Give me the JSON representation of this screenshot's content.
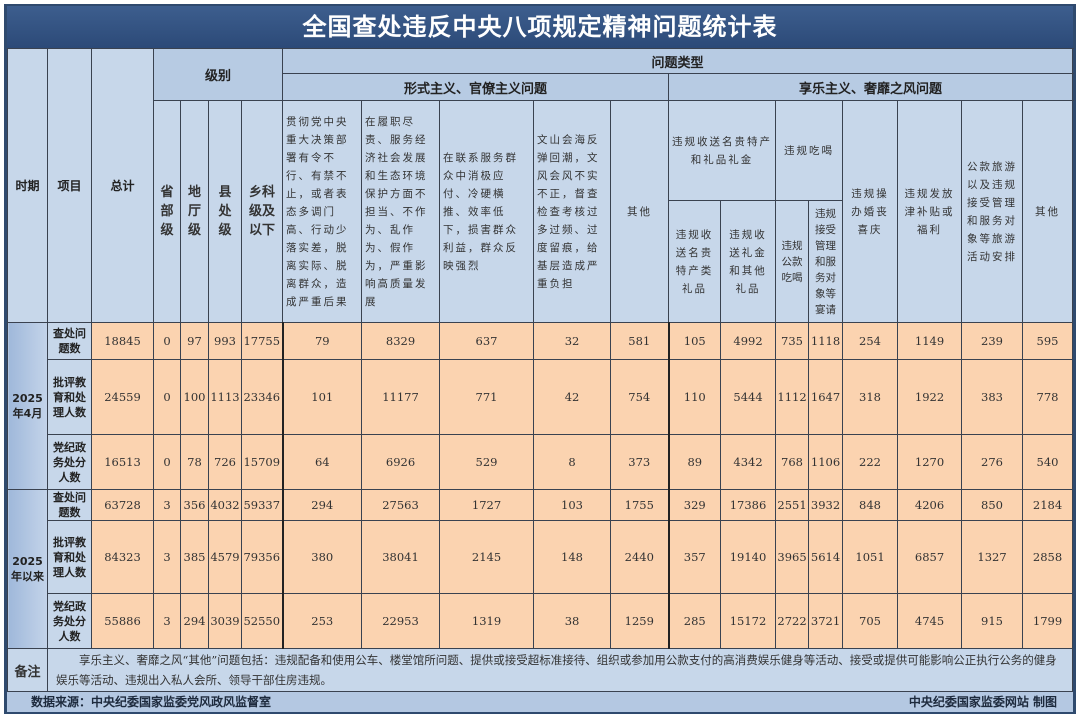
{
  "title": "全国查处违反中央八项规定精神问题统计表",
  "headers": {
    "period": "时期",
    "item": "项目",
    "total": "总计",
    "level": "级别",
    "levels": [
      "省部级",
      "地厅级",
      "县处级",
      "乡科级及以下"
    ],
    "problem_type": "问题类型",
    "formalism": "形式主义、官僚主义问题",
    "formalism_cols": [
      "贯彻党中央重大决策部署有令不行、有禁不止，或者表态多调门高、行动少落实差，脱离实际、脱离群众，造成严重后果",
      "在履职尽责、服务经济社会发展和生态环境保护方面不担当、不作为、乱作为、假作为，严重影响高质量发展",
      "在联系服务群众中消极应付、冷硬横推、效率低下，损害群众利益，群众反映强烈",
      "文山会海反弹回潮，文风会风不实不正，督查检查考核过多过频、过度留痕，给基层造成严重负担",
      "其他"
    ],
    "hedonism": "享乐主义、奢靡之风问题",
    "gift_group": "违规收送名贵特产和礼品礼金",
    "gift_cols": [
      "违规收送名贵特产类礼品",
      "违规收送礼金和其他礼品"
    ],
    "eat_group": "违规吃喝",
    "eat_cols": [
      "违规公款吃喝",
      "违规接受管理和服务对象等宴请"
    ],
    "other_hedonism_cols": [
      "违规操办婚丧喜庆",
      "违规发放津补贴或福利",
      "公款旅游以及违规接受管理和服务对象等旅游活动安排",
      "其他"
    ]
  },
  "periods": [
    {
      "label": "2025年4月",
      "rows": [
        {
          "item": "查处问题数",
          "values": [
            18845,
            0,
            97,
            993,
            17755,
            79,
            8329,
            637,
            32,
            581,
            105,
            4992,
            735,
            1118,
            254,
            1149,
            239,
            595
          ]
        },
        {
          "item": "批评教育和处理人数",
          "values": [
            24559,
            0,
            100,
            1113,
            23346,
            101,
            11177,
            771,
            42,
            754,
            110,
            5444,
            1112,
            1647,
            318,
            1922,
            383,
            778
          ]
        },
        {
          "item": "党纪政务处分人数",
          "values": [
            16513,
            0,
            78,
            726,
            15709,
            64,
            6926,
            529,
            8,
            373,
            89,
            4342,
            768,
            1106,
            222,
            1270,
            276,
            540
          ]
        }
      ]
    },
    {
      "label": "2025年以来",
      "rows": [
        {
          "item": "查处问题数",
          "values": [
            63728,
            3,
            356,
            4032,
            59337,
            294,
            27563,
            1727,
            103,
            1755,
            329,
            17386,
            2551,
            3932,
            848,
            4206,
            850,
            2184
          ]
        },
        {
          "item": "批评教育和处理人数",
          "values": [
            84323,
            3,
            385,
            4579,
            79356,
            380,
            38041,
            2145,
            148,
            2440,
            357,
            19140,
            3965,
            5614,
            1051,
            6857,
            1327,
            2858
          ]
        },
        {
          "item": "党纪政务处分人数",
          "values": [
            55886,
            3,
            294,
            3039,
            52550,
            253,
            22953,
            1319,
            38,
            1259,
            285,
            15172,
            2722,
            3721,
            705,
            4745,
            915,
            1799
          ]
        }
      ]
    }
  ],
  "note_label": "备注",
  "note": "享乐主义、奢靡之风“其他”问题包括：违规配备和使用公车、楼堂馆所问题、提供或接受超标准接待、组织或参加用公款支付的高消费娱乐健身等活动、接受或提供可能影响公正执行公务的健身娱乐等活动、违规出入私人会所、领导干部住房违规。",
  "footer": {
    "source": "数据来源：中央纪委国家监委党风政风监督室",
    "credit": "中央纪委国家监委网站 制图"
  },
  "colors": {
    "header": "#c7d7ea",
    "title": "#2c4a78",
    "data": "#fbd3b0"
  }
}
